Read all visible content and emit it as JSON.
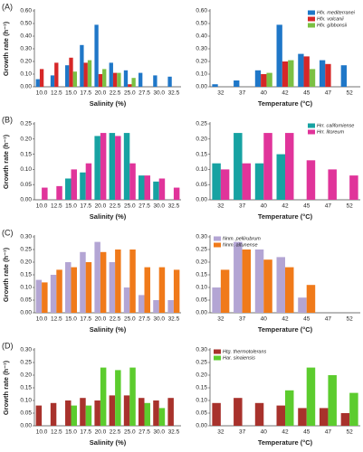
{
  "chart_data": [
    {
      "type": "bar",
      "panel_label": "(A)",
      "y_label": "Growth rate (h⁻¹)",
      "x_label": "Salinity (%)",
      "categories": [
        "10.0",
        "12.5",
        "15.0",
        "17.5",
        "20.0",
        "22.5",
        "25.0",
        "27.5",
        "30.0",
        "32.5"
      ],
      "series": [
        {
          "color": "#1f77c8",
          "values": [
            0.06,
            0.09,
            0.17,
            0.33,
            0.49,
            0.19,
            0.13,
            0.11,
            0.09,
            0.08
          ]
        },
        {
          "color": "#d62728",
          "values": [
            0.14,
            0.19,
            0.23,
            0.19,
            0.1,
            0.11,
            0.02,
            null,
            null,
            null
          ]
        },
        {
          "color": "#7bc043",
          "values": [
            null,
            null,
            0.12,
            0.21,
            0.14,
            0.11,
            0.07,
            null,
            null,
            null
          ]
        }
      ],
      "ylim": [
        0,
        0.6
      ],
      "yticks": [
        {
          "value": 0,
          "label": "0.00"
        },
        {
          "value": 0.1,
          "label": "0.10"
        },
        {
          "value": 0.2,
          "label": "0.20"
        },
        {
          "value": 0.3,
          "label": "0.30"
        },
        {
          "value": 0.4,
          "label": "0.40"
        },
        {
          "value": 0.5,
          "label": "0.50"
        },
        {
          "value": 0.6,
          "label": "0.60"
        }
      ]
    },
    {
      "type": "bar",
      "x_label": "Temperature (°C)",
      "legend": "upper right",
      "categories": [
        "32",
        "37",
        "40",
        "42",
        "45",
        "47",
        "52"
      ],
      "series": [
        {
          "name": "Hfx. mediterranei",
          "color": "#1f77c8",
          "values": [
            0.02,
            0.05,
            0.13,
            0.49,
            0.26,
            0.21,
            0.17
          ]
        },
        {
          "name": "Hfx. volcanii",
          "color": "#d62728",
          "values": [
            null,
            null,
            0.1,
            0.2,
            0.24,
            0.18,
            null
          ]
        },
        {
          "name": "Hfx. gibbonsii",
          "color": "#7bc043",
          "values": [
            null,
            null,
            0.11,
            0.21,
            0.14,
            null,
            null
          ]
        }
      ],
      "ylim": [
        0,
        0.6
      ],
      "yticks": [
        {
          "value": 0,
          "label": "0.00"
        },
        {
          "value": 0.1,
          "label": "0.10"
        },
        {
          "value": 0.2,
          "label": "0.20"
        },
        {
          "value": 0.3,
          "label": "0.30"
        },
        {
          "value": 0.4,
          "label": "0.40"
        },
        {
          "value": 0.5,
          "label": "0.50"
        },
        {
          "value": 0.6,
          "label": "0.60"
        }
      ]
    },
    {
      "type": "bar",
      "panel_label": "(B)",
      "y_label": "Growth rate (h⁻¹)",
      "x_label": "Salinity (%)",
      "categories": [
        "10.0",
        "12.5",
        "15.0",
        "17.5",
        "20.0",
        "22.5",
        "25.0",
        "27.5",
        "30.0",
        "32.5"
      ],
      "series": [
        {
          "color": "#17a2a2",
          "values": [
            null,
            null,
            0.07,
            0.09,
            0.21,
            0.22,
            0.22,
            0.08,
            0.06,
            null
          ]
        },
        {
          "color": "#e0349a",
          "values": [
            0.04,
            0.045,
            0.1,
            0.12,
            0.22,
            0.21,
            0.12,
            0.08,
            0.07,
            0.04
          ]
        }
      ],
      "ylim": [
        0,
        0.25
      ],
      "yticks": [
        {
          "value": 0,
          "label": "0.00"
        },
        {
          "value": 0.05,
          "label": "0.05"
        },
        {
          "value": 0.1,
          "label": "0.10"
        },
        {
          "value": 0.15,
          "label": "0.15"
        },
        {
          "value": 0.2,
          "label": "0.20"
        },
        {
          "value": 0.25,
          "label": "0.25"
        }
      ]
    },
    {
      "type": "bar",
      "x_label": "Temperature (°C)",
      "legend": "upper right",
      "categories": [
        "32",
        "37",
        "40",
        "42",
        "45",
        "47",
        "52"
      ],
      "series": [
        {
          "name": "Hrr. californiense",
          "color": "#17a2a2",
          "values": [
            0.12,
            0.22,
            0.12,
            0.15,
            null,
            null,
            null
          ]
        },
        {
          "name": "Hrr. litoreum",
          "color": "#e0349a",
          "values": [
            0.1,
            0.12,
            0.22,
            0.22,
            0.13,
            0.1,
            0.08
          ]
        }
      ],
      "ylim": [
        0,
        0.25
      ],
      "yticks": [
        {
          "value": 0,
          "label": "0.00"
        },
        {
          "value": 0.05,
          "label": "0.05"
        },
        {
          "value": 0.1,
          "label": "0.10"
        },
        {
          "value": 0.15,
          "label": "0.15"
        },
        {
          "value": 0.2,
          "label": "0.20"
        },
        {
          "value": 0.25,
          "label": "0.25"
        }
      ]
    },
    {
      "type": "bar",
      "panel_label": "(C)",
      "y_label": "Growth rate (h⁻¹)",
      "x_label": "Salinity (%)",
      "categories": [
        "10.0",
        "12.5",
        "15.0",
        "17.5",
        "20.0",
        "22.5",
        "25.0",
        "27.5",
        "30.0",
        "32.5"
      ],
      "series": [
        {
          "color": "#b3a5d4",
          "values": [
            0.13,
            0.15,
            0.2,
            0.24,
            0.28,
            0.2,
            0.1,
            0.07,
            0.05,
            0.05
          ]
        },
        {
          "color": "#f07a1a",
          "values": [
            0.12,
            0.17,
            0.18,
            0.2,
            0.24,
            0.25,
            0.25,
            0.18,
            0.18,
            0.17
          ]
        }
      ],
      "ylim": [
        0,
        0.3
      ],
      "yticks": [
        {
          "value": 0,
          "label": "0.00"
        },
        {
          "value": 0.05,
          "label": "0.05"
        },
        {
          "value": 0.1,
          "label": "0.10"
        },
        {
          "value": 0.15,
          "label": "0.15"
        },
        {
          "value": 0.2,
          "label": "0.20"
        },
        {
          "value": 0.25,
          "label": "0.25"
        },
        {
          "value": 0.3,
          "label": "0.30"
        }
      ]
    },
    {
      "type": "bar",
      "x_label": "Temperature (°C)",
      "legend": "upper left",
      "categories": [
        "32",
        "37",
        "40",
        "42",
        "45",
        "47",
        "52"
      ],
      "series": [
        {
          "name": "Nnm. pellirubrum",
          "color": "#b3a5d4",
          "values": [
            0.1,
            0.28,
            0.25,
            0.22,
            0.06,
            null,
            null
          ]
        },
        {
          "name": "Nnm. altunense",
          "color": "#f07a1a",
          "values": [
            0.17,
            0.25,
            0.21,
            0.18,
            0.11,
            null,
            null
          ]
        }
      ],
      "ylim": [
        0,
        0.3
      ],
      "yticks": [
        {
          "value": 0,
          "label": "0.00"
        },
        {
          "value": 0.05,
          "label": "0.05"
        },
        {
          "value": 0.1,
          "label": "0.10"
        },
        {
          "value": 0.15,
          "label": "0.15"
        },
        {
          "value": 0.2,
          "label": "0.20"
        },
        {
          "value": 0.25,
          "label": "0.25"
        },
        {
          "value": 0.3,
          "label": "0.30"
        }
      ]
    },
    {
      "type": "bar",
      "panel_label": "(D)",
      "y_label": "Growth rate (h⁻¹)",
      "x_label": "Salinity (%)",
      "categories": [
        "10.0",
        "12.5",
        "15.0",
        "17.5",
        "20.0",
        "22.5",
        "25.0",
        "27.5",
        "30.0",
        "32.5"
      ],
      "series": [
        {
          "color": "#a8322c",
          "values": [
            0.08,
            0.09,
            0.1,
            0.11,
            0.1,
            0.12,
            0.12,
            0.11,
            0.1,
            0.11
          ]
        },
        {
          "color": "#5ccc2e",
          "values": [
            null,
            null,
            0.08,
            0.08,
            0.23,
            0.22,
            0.23,
            0.09,
            0.07,
            null
          ]
        }
      ],
      "ylim": [
        0,
        0.3
      ],
      "yticks": [
        {
          "value": 0,
          "label": "0.00"
        },
        {
          "value": 0.05,
          "label": "0.05"
        },
        {
          "value": 0.1,
          "label": "0.10"
        },
        {
          "value": 0.15,
          "label": "0.15"
        },
        {
          "value": 0.2,
          "label": "0.20"
        },
        {
          "value": 0.25,
          "label": "0.25"
        },
        {
          "value": 0.3,
          "label": "0.30"
        }
      ]
    },
    {
      "type": "bar",
      "x_label": "Temperature (°C)",
      "legend": "upper left",
      "categories": [
        "32",
        "37",
        "40",
        "42",
        "45",
        "47",
        "52"
      ],
      "series": [
        {
          "name": "Htg. thermotolerans",
          "color": "#a8322c",
          "values": [
            0.09,
            0.11,
            0.09,
            0.08,
            0.07,
            0.07,
            0.05
          ]
        },
        {
          "name": "Har. sinaiensis",
          "color": "#5ccc2e",
          "values": [
            null,
            null,
            null,
            0.14,
            0.23,
            0.2,
            0.13
          ]
        }
      ],
      "ylim": [
        0,
        0.3
      ],
      "yticks": [
        {
          "value": 0,
          "label": "0.00"
        },
        {
          "value": 0.05,
          "label": "0.05"
        },
        {
          "value": 0.1,
          "label": "0.10"
        },
        {
          "value": 0.15,
          "label": "0.15"
        },
        {
          "value": 0.2,
          "label": "0.20"
        },
        {
          "value": 0.25,
          "label": "0.25"
        },
        {
          "value": 0.3,
          "label": "0.30"
        }
      ]
    }
  ]
}
